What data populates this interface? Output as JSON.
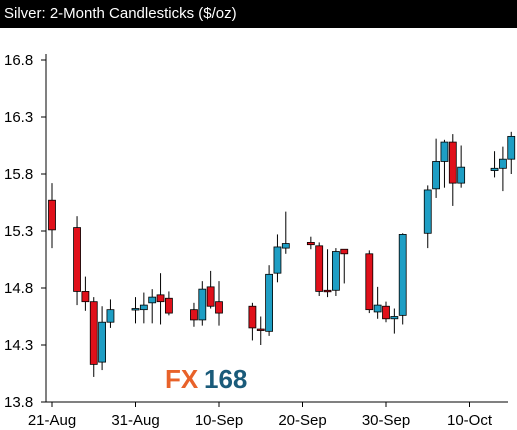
{
  "title": "Silver: 2-Month Candlesticks ($/oz)",
  "watermark": {
    "part1": "FX",
    "part2": "168"
  },
  "colors": {
    "up": "#1e9ec4",
    "down": "#e0101a",
    "wick": "#000000",
    "axis": "#000000"
  },
  "chart_data": {
    "type": "candlestick",
    "title": "Silver: 2-Month Candlesticks ($/oz)",
    "xlabel": "",
    "ylabel": "",
    "ylim": [
      13.8,
      16.8
    ],
    "yticks": [
      13.8,
      14.3,
      14.8,
      15.3,
      15.8,
      16.3,
      16.8
    ],
    "x_tick_labels": [
      "21-Aug",
      "31-Aug",
      "10-Sep",
      "20-Sep",
      "30-Sep",
      "10-Oct"
    ],
    "grid": false,
    "candles": [
      {
        "date": "2009-08-21",
        "open": 15.57,
        "high": 15.72,
        "low": 15.15,
        "close": 15.31
      },
      {
        "date": "2009-08-24",
        "open": 15.33,
        "high": 15.43,
        "low": 14.65,
        "close": 14.77
      },
      {
        "date": "2009-08-25",
        "open": 14.77,
        "high": 14.9,
        "low": 14.6,
        "close": 14.68
      },
      {
        "date": "2009-08-26",
        "open": 14.68,
        "high": 14.72,
        "low": 14.02,
        "close": 14.13
      },
      {
        "date": "2009-08-27",
        "open": 14.15,
        "high": 14.64,
        "low": 14.08,
        "close": 14.5
      },
      {
        "date": "2009-08-28",
        "open": 14.5,
        "high": 14.7,
        "low": 14.45,
        "close": 14.61
      },
      {
        "date": "2009-08-31",
        "open": 14.61,
        "high": 14.72,
        "low": 14.49,
        "close": 14.62
      },
      {
        "date": "2009-09-01",
        "open": 14.61,
        "high": 14.76,
        "low": 14.49,
        "close": 14.65
      },
      {
        "date": "2009-09-02",
        "open": 14.67,
        "high": 14.79,
        "low": 14.49,
        "close": 14.72
      },
      {
        "date": "2009-09-03",
        "open": 14.74,
        "high": 14.93,
        "low": 14.48,
        "close": 14.68
      },
      {
        "date": "2009-09-04",
        "open": 14.71,
        "high": 14.77,
        "low": 14.56,
        "close": 14.58
      },
      {
        "date": "2009-09-07",
        "open": 14.61,
        "high": 14.67,
        "low": 14.46,
        "close": 14.52
      },
      {
        "date": "2009-09-08",
        "open": 14.52,
        "high": 14.86,
        "low": 14.47,
        "close": 14.79
      },
      {
        "date": "2009-09-09",
        "open": 14.81,
        "high": 14.95,
        "low": 14.62,
        "close": 14.64
      },
      {
        "date": "2009-09-10",
        "open": 14.68,
        "high": 14.86,
        "low": 14.47,
        "close": 14.58
      },
      {
        "date": "2009-09-14",
        "open": 14.64,
        "high": 14.67,
        "low": 14.34,
        "close": 14.45
      },
      {
        "date": "2009-09-15",
        "open": 14.44,
        "high": 14.55,
        "low": 14.3,
        "close": 14.43
      },
      {
        "date": "2009-09-16",
        "open": 14.42,
        "high": 15.0,
        "low": 14.38,
        "close": 14.92
      },
      {
        "date": "2009-09-17",
        "open": 14.93,
        "high": 15.27,
        "low": 14.85,
        "close": 15.16
      },
      {
        "date": "2009-09-18",
        "open": 15.15,
        "high": 15.47,
        "low": 15.1,
        "close": 15.19
      },
      {
        "date": "2009-09-21",
        "open": 15.2,
        "high": 15.25,
        "low": 15.14,
        "close": 15.18
      },
      {
        "date": "2009-09-22",
        "open": 15.17,
        "high": 15.2,
        "low": 14.73,
        "close": 14.77
      },
      {
        "date": "2009-09-23",
        "open": 14.78,
        "high": 15.14,
        "low": 14.72,
        "close": 14.77
      },
      {
        "date": "2009-09-24",
        "open": 14.78,
        "high": 15.15,
        "low": 14.73,
        "close": 15.12
      },
      {
        "date": "2009-09-25",
        "open": 15.14,
        "high": 15.14,
        "low": 14.84,
        "close": 15.1
      },
      {
        "date": "2009-09-28",
        "open": 15.1,
        "high": 15.13,
        "low": 14.58,
        "close": 14.61
      },
      {
        "date": "2009-09-29",
        "open": 14.59,
        "high": 14.81,
        "low": 14.53,
        "close": 14.65
      },
      {
        "date": "2009-09-30",
        "open": 14.64,
        "high": 14.68,
        "low": 14.5,
        "close": 14.53
      },
      {
        "date": "2009-10-01",
        "open": 14.53,
        "high": 14.62,
        "low": 14.4,
        "close": 14.55
      },
      {
        "date": "2009-10-02",
        "open": 14.56,
        "high": 15.28,
        "low": 14.48,
        "close": 15.27
      },
      {
        "date": "2009-10-05",
        "open": 15.28,
        "high": 15.7,
        "low": 15.15,
        "close": 15.66
      },
      {
        "date": "2009-10-06",
        "open": 15.67,
        "high": 16.11,
        "low": 15.59,
        "close": 15.91
      },
      {
        "date": "2009-10-07",
        "open": 15.91,
        "high": 16.1,
        "low": 15.68,
        "close": 16.08
      },
      {
        "date": "2009-10-08",
        "open": 16.08,
        "high": 16.15,
        "low": 15.52,
        "close": 15.72
      },
      {
        "date": "2009-10-09",
        "open": 15.72,
        "high": 16.05,
        "low": 15.68,
        "close": 15.86
      },
      {
        "date": "2009-10-13",
        "open": 15.83,
        "high": 16.0,
        "low": 15.77,
        "close": 15.85
      },
      {
        "date": "2009-10-14",
        "open": 15.85,
        "high": 16.04,
        "low": 15.65,
        "close": 15.93
      },
      {
        "date": "2009-10-15",
        "open": 15.93,
        "high": 16.17,
        "low": 15.8,
        "close": 16.13
      }
    ]
  }
}
